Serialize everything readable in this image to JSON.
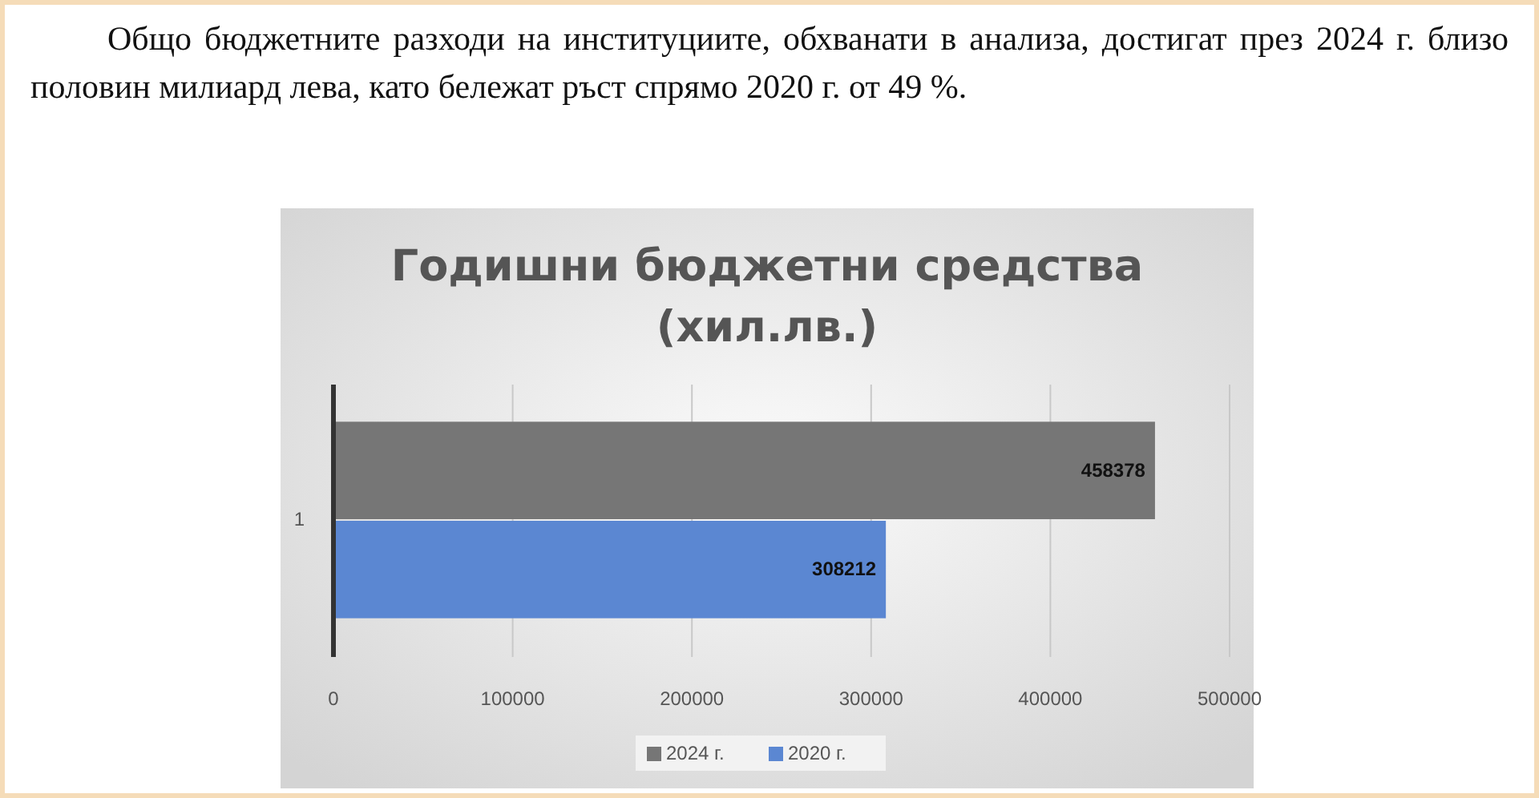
{
  "chart_data": {
    "type": "bar",
    "orientation": "horizontal",
    "title": "Годишни бюджетни средства (хил.лв.)",
    "annotations": [
      "Общо бюджетните разходи на институциите, обхванати в анализа, достигат през 2024 г. близо половин милиард лева, като бележат ръст спрямо 2020 г. от 49 %."
    ],
    "categories": [
      "1"
    ],
    "series": [
      {
        "name": "2024 г.",
        "color": "#767676",
        "values": [
          458378
        ]
      },
      {
        "name": "2020 г.",
        "color": "#5b87d2",
        "values": [
          308212
        ]
      }
    ],
    "xlim": [
      0,
      500000
    ],
    "xticks": [
      0,
      100000,
      200000,
      300000,
      400000,
      500000
    ],
    "grid": "x",
    "legend": "bottom",
    "data_labels": true
  }
}
